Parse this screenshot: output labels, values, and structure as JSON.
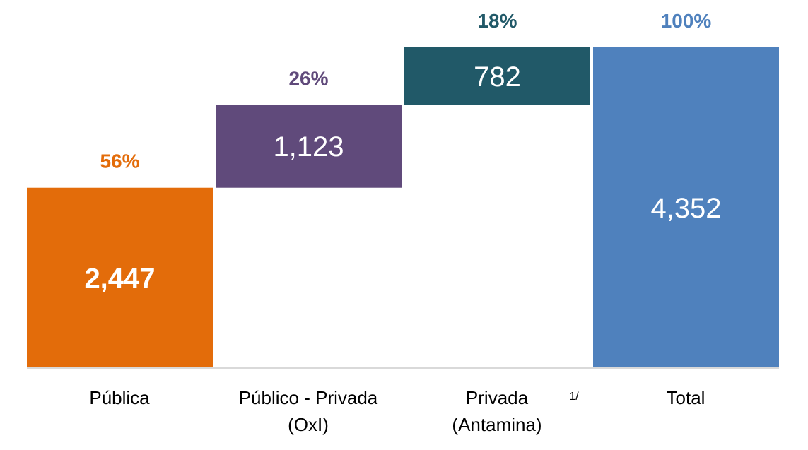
{
  "chart_data": {
    "type": "bar",
    "subtype": "waterfall",
    "categories": [
      [
        "Pública"
      ],
      [
        "Público - Privada",
        "(OxI)"
      ],
      [
        "Privada",
        "(Antamina)"
      ],
      [
        "Total"
      ]
    ],
    "values": [
      2447,
      1123,
      782,
      4352
    ],
    "value_labels": [
      "2,447",
      "1,123",
      "782",
      "4,352"
    ],
    "percent_labels": [
      "56%",
      "26%",
      "18%",
      "100%"
    ],
    "footnotes": [
      "",
      "",
      "1/",
      ""
    ],
    "colors": [
      "#E36C0A",
      "#604A7B",
      "#215968",
      "#4F81BD"
    ],
    "ylim": [
      0,
      4352
    ],
    "grid": false,
    "legend": "none"
  }
}
